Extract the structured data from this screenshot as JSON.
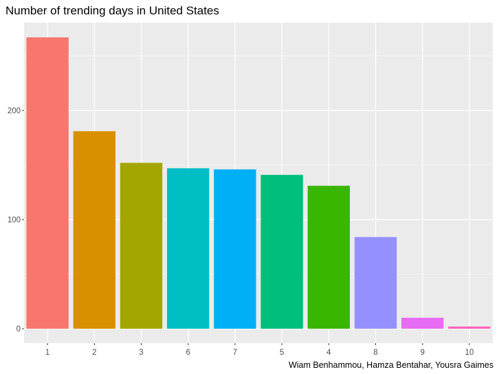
{
  "chart_data": {
    "type": "bar",
    "title": "Number of trending days in United States",
    "caption": "Wiam Benhammou, Hamza Bentahar, Yousra Gaimes",
    "xlabel": "",
    "ylabel": "",
    "categories": [
      "1",
      "2",
      "3",
      "6",
      "7",
      "5",
      "4",
      "8",
      "9",
      "10"
    ],
    "values": [
      267,
      181,
      152,
      147,
      146,
      141,
      131,
      84,
      10,
      2
    ],
    "colors": [
      "#F8766D",
      "#D89000",
      "#A3A500",
      "#00BFC4",
      "#00B0F6",
      "#00BF7D",
      "#39B600",
      "#9590FF",
      "#E76BF3",
      "#FF62BC"
    ],
    "ylim": [
      0,
      280
    ],
    "yticks": [
      0,
      100,
      200
    ],
    "ytick_labels": [
      "0",
      "100",
      "200"
    ],
    "panel_background": "#EBEBEB",
    "grid": true,
    "legend": "none"
  }
}
